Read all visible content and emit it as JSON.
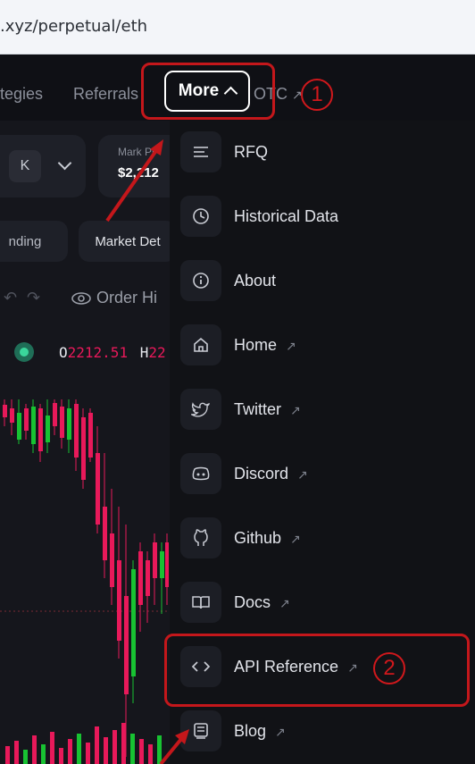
{
  "browser": {
    "url": ".xyz/perpetual/eth"
  },
  "nav": {
    "strategies_label": "tegies",
    "referrals_label": "Referrals",
    "more_label": "More",
    "otc_label": "OTC",
    "otc_arrow": "↗"
  },
  "header": {
    "selector_k": "K",
    "market_price_label": "Mark Pr",
    "market_price_value": "$2,212",
    "funding_tab": "nding",
    "market_details_tab": "Market Det"
  },
  "toolbar": {
    "order_history_label": "Order Hi"
  },
  "ohlc": {
    "o_label": "O",
    "o_value": "2212.51",
    "h_label": "H",
    "h_value": "22"
  },
  "menu": {
    "items": [
      {
        "label": "RFQ",
        "icon": "list-icon",
        "external": false
      },
      {
        "label": "Historical Data",
        "icon": "clock-icon",
        "external": false
      },
      {
        "label": "About",
        "icon": "info-icon",
        "external": false
      },
      {
        "label": "Home",
        "icon": "home-icon",
        "external": true
      },
      {
        "label": "Twitter",
        "icon": "twitter-icon",
        "external": true
      },
      {
        "label": "Discord",
        "icon": "discord-icon",
        "external": true
      },
      {
        "label": "Github",
        "icon": "github-icon",
        "external": true
      },
      {
        "label": "Docs",
        "icon": "book-icon",
        "external": true
      },
      {
        "label": "API Reference",
        "icon": "code-icon",
        "external": true
      },
      {
        "label": "Blog",
        "icon": "blog-icon",
        "external": true
      }
    ],
    "external_glyph": "↗"
  },
  "annotations": {
    "step1": "1",
    "step2": "2"
  },
  "colors": {
    "annotation_red": "#c4171b",
    "candle_up": "#18c232",
    "candle_down": "#e8195a",
    "menu_bg": "#111216"
  }
}
